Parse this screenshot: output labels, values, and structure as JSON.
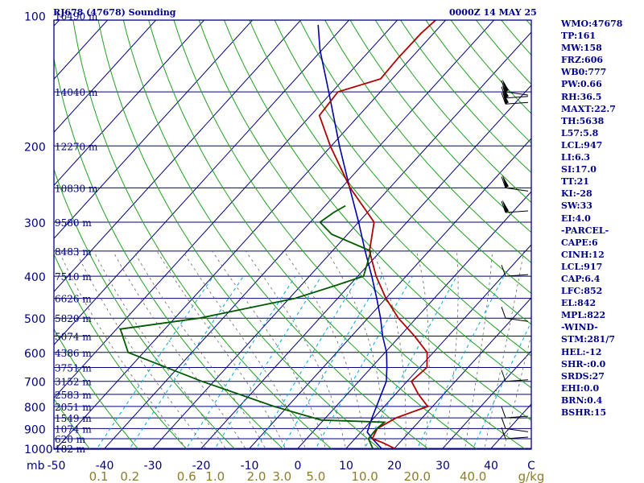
{
  "header": {
    "title_left": "RJ678 (47678) Sounding",
    "title_right": "0000Z 14 MAY 25"
  },
  "indices": [
    "WMO:47678",
    "TP:161",
    "MW:158",
    "FRZ:606",
    "WB0:777",
    "PW:0.66",
    "RH:36.5",
    "MAXT:22.7",
    "TH:5638",
    "L57:5.8",
    "LCL:947",
    "LI:6.3",
    "SI:17.0",
    "TT:21",
    "KI:-28",
    "SW:33",
    "EI:4.0",
    "-PARCEL-",
    "CAPE:6",
    "CINH:12",
    "LCL:917",
    "CAP:6.4",
    "LFC:852",
    "EL:842",
    "MPL:822",
    "-WIND-",
    "STM:281/7",
    "HEL:-12",
    "SHR-:0.0",
    "SRDS:27",
    "EHI:0.0",
    "BRN:0.4",
    "BSHR:15"
  ],
  "colors": {
    "frame": "#000080",
    "isobars": "#000080",
    "isotherms": "#000080",
    "dry_adiabats": "#22a022",
    "mixing_ratio": "#00aadd",
    "moist_adiabats": "#666666",
    "temperature": "#b00000",
    "dewpoint": "#005a00",
    "parcel": "#0000aa",
    "tick_labels": "#000080",
    "wv_labels": "#8b7d2a"
  },
  "chart_data": {
    "type": "line",
    "xlabel": "C",
    "ylabel": "mb",
    "pressure_ticks": [
      100,
      200,
      300,
      400,
      500,
      600,
      700,
      800,
      900,
      1000
    ],
    "temperature_ticks": [
      -50,
      -40,
      -30,
      -20,
      -10,
      0,
      10,
      20,
      30,
      40
    ],
    "mixing_ratio_ticks": [
      "0.1",
      "0.2",
      "0.6",
      "1.0",
      "2.0",
      "3.0",
      "5.0",
      "10.0",
      "20.0",
      "40.0"
    ],
    "mixing_ratio_unit": "g/kg",
    "height_levels": [
      {
        "p": 100,
        "label": "16490 m"
      },
      {
        "p": 150,
        "label": "14040 m"
      },
      {
        "p": 200,
        "label": "12270 m"
      },
      {
        "p": 250,
        "label": "10830 m"
      },
      {
        "p": 300,
        "label": "9580 m"
      },
      {
        "p": 350,
        "label": "8483 m"
      },
      {
        "p": 400,
        "label": "7510 m"
      },
      {
        "p": 450,
        "label": "6626 m"
      },
      {
        "p": 500,
        "label": "5820 m"
      },
      {
        "p": 550,
        "label": "5074 m"
      },
      {
        "p": 600,
        "label": "4386 m"
      },
      {
        "p": 650,
        "label": "3751 m"
      },
      {
        "p": 700,
        "label": "3152 m"
      },
      {
        "p": 750,
        "label": "2583 m"
      },
      {
        "p": 800,
        "label": "2051 m"
      },
      {
        "p": 850,
        "label": "1549 m"
      },
      {
        "p": 900,
        "label": "1074 m"
      },
      {
        "p": 950,
        "label": "620 m"
      },
      {
        "p": 1000,
        "label": "182 m"
      }
    ],
    "temperature_profile": [
      [
        1022,
        20.3
      ],
      [
        1000,
        20.0
      ],
      [
        970,
        16.5
      ],
      [
        950,
        13.6
      ],
      [
        900,
        12.7
      ],
      [
        850,
        14.6
      ],
      [
        800,
        19.0
      ],
      [
        750,
        14.8
      ],
      [
        700,
        10.9
      ],
      [
        650,
        11.5
      ],
      [
        600,
        8.7
      ],
      [
        550,
        3.0
      ],
      [
        500,
        -3.7
      ],
      [
        450,
        -10.0
      ],
      [
        400,
        -16.2
      ],
      [
        350,
        -22.3
      ],
      [
        300,
        -26.8
      ],
      [
        250,
        -38.2
      ],
      [
        200,
        -50.2
      ],
      [
        170,
        -58.2
      ],
      [
        150,
        -58.8
      ],
      [
        140,
        -52.4
      ],
      [
        125,
        -52.7
      ],
      [
        110,
        -52.6
      ],
      [
        100,
        -51.9
      ]
    ],
    "dewpoint_profile": [
      [
        1022,
        17.3
      ],
      [
        1000,
        15.5
      ],
      [
        950,
        12.8
      ],
      [
        900,
        12.6
      ],
      [
        870,
        13.0
      ],
      [
        860,
        -0.5
      ],
      [
        800,
        -12.8
      ],
      [
        700,
        -32.5
      ],
      [
        600,
        -53.2
      ],
      [
        530,
        -59.2
      ],
      [
        500,
        -44.9
      ],
      [
        450,
        -28.8
      ],
      [
        420,
        -22.8
      ],
      [
        400,
        -18.8
      ],
      [
        350,
        -22.0
      ],
      [
        320,
        -33.3
      ],
      [
        300,
        -38.0
      ],
      [
        285,
        -37.0
      ],
      [
        275,
        -35.8
      ]
    ],
    "parcel_profile": [
      [
        1022,
        20.3
      ],
      [
        1000,
        17.3
      ],
      [
        950,
        13.6
      ],
      [
        917,
        11.3
      ],
      [
        850,
        9.6
      ],
      [
        800,
        8.4
      ],
      [
        750,
        7.1
      ],
      [
        700,
        5.7
      ],
      [
        650,
        3.2
      ],
      [
        600,
        0.3
      ],
      [
        550,
        -3.6
      ],
      [
        500,
        -7.4
      ],
      [
        450,
        -11.9
      ],
      [
        400,
        -17.1
      ],
      [
        350,
        -23.2
      ],
      [
        300,
        -30.0
      ],
      [
        250,
        -38.3
      ],
      [
        200,
        -48.3
      ],
      [
        150,
        -60.7
      ],
      [
        120,
        -70.4
      ],
      [
        105,
        -75.5
      ]
    ],
    "wind_levels": [
      150,
      155,
      160,
      250,
      285,
      400,
      500,
      700,
      850,
      900,
      950
    ],
    "grid": true
  }
}
